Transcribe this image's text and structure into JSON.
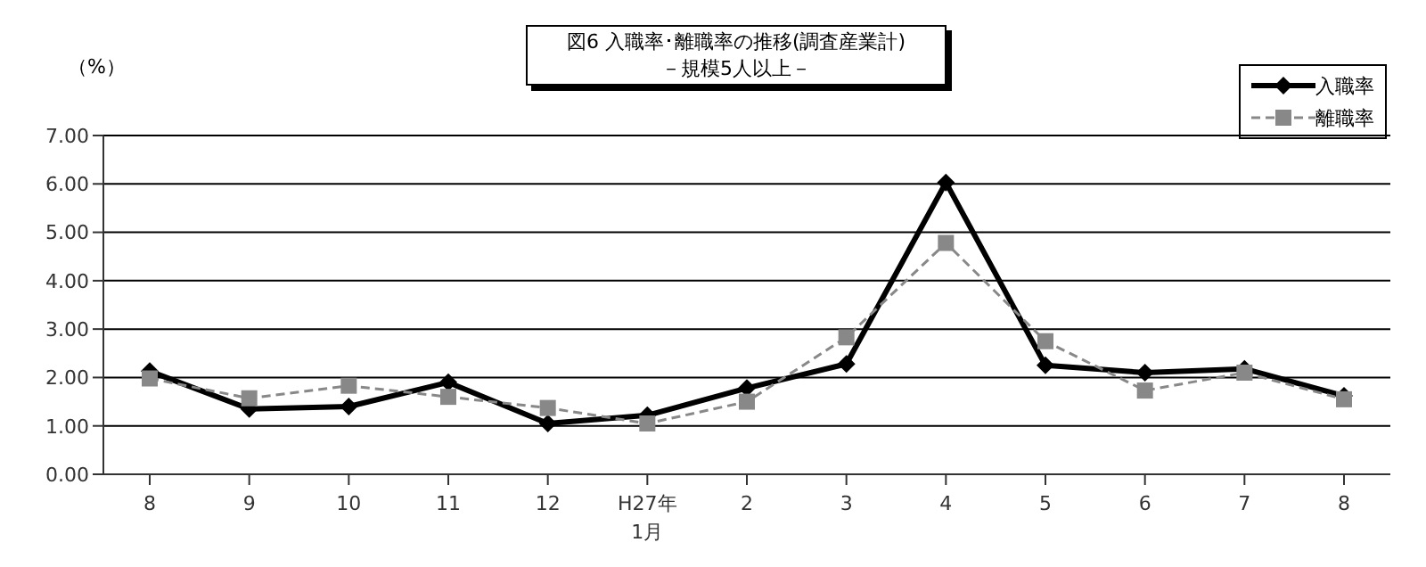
{
  "chart_data": {
    "type": "line",
    "title": "図6  入職率･離職率の推移(調査産業計)",
    "subtitle": "－規模5人以上－",
    "ylabel": "（%）",
    "categories": [
      "8",
      "9",
      "10",
      "11",
      "12",
      "H27年\n1月",
      "2",
      "3",
      "4",
      "5",
      "6",
      "7",
      "8"
    ],
    "series": [
      {
        "name": "入職率",
        "color": "#000000",
        "marker": "diamond",
        "line_style": "solid",
        "values": [
          2.13,
          1.35,
          1.4,
          1.9,
          1.05,
          1.22,
          1.78,
          2.28,
          6.03,
          2.25,
          2.1,
          2.18,
          1.62
        ]
      },
      {
        "name": "離職率",
        "color": "#888888",
        "marker": "square",
        "line_style": "dashed",
        "values": [
          1.98,
          1.57,
          1.83,
          1.6,
          1.37,
          1.05,
          1.5,
          2.83,
          4.78,
          2.75,
          1.73,
          2.1,
          1.55
        ]
      }
    ],
    "ylim": [
      0,
      7
    ],
    "yticks": [
      {
        "value": 0,
        "label": "0.00"
      },
      {
        "value": 1,
        "label": "1.00"
      },
      {
        "value": 2,
        "label": "2.00"
      },
      {
        "value": 3,
        "label": "3.00"
      },
      {
        "value": 4,
        "label": "4.00"
      },
      {
        "value": 5,
        "label": "5.00"
      },
      {
        "value": 6,
        "label": "6.00"
      },
      {
        "value": 7,
        "label": "7.00"
      }
    ],
    "grid": "y",
    "legend": "top right"
  }
}
